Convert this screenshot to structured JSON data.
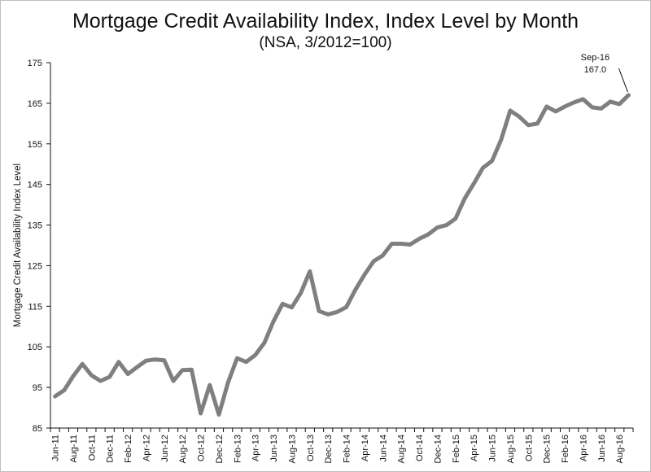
{
  "chart_data": {
    "type": "line",
    "title": "Mortgage Credit Availability Index, Index Level by Month",
    "subtitle": "(NSA, 3/2012=100)",
    "ylabel": "Mortgage Credit Availability Index Level",
    "xlabel": "",
    "ylim": [
      85,
      175
    ],
    "yticks": [
      85,
      95,
      105,
      115,
      125,
      135,
      145,
      155,
      165,
      175
    ],
    "grid": false,
    "line_color": "#7f7f7f",
    "x": [
      "Jun-11",
      "Jul-11",
      "Aug-11",
      "Sep-11",
      "Oct-11",
      "Nov-11",
      "Dec-11",
      "Jan-12",
      "Feb-12",
      "Mar-12",
      "Apr-12",
      "May-12",
      "Jun-12",
      "Jul-12",
      "Aug-12",
      "Sep-12",
      "Oct-12",
      "Nov-12",
      "Dec-12",
      "Jan-13",
      "Feb-13",
      "Mar-13",
      "Apr-13",
      "May-13",
      "Jun-13",
      "Jul-13",
      "Aug-13",
      "Sep-13",
      "Oct-13",
      "Nov-13",
      "Dec-13",
      "Jan-14",
      "Feb-14",
      "Mar-14",
      "Apr-14",
      "May-14",
      "Jun-14",
      "Jul-14",
      "Aug-14",
      "Sep-14",
      "Oct-14",
      "Nov-14",
      "Dec-14",
      "Jan-15",
      "Feb-15",
      "Mar-15",
      "Apr-15",
      "May-15",
      "Jun-15",
      "Jul-15",
      "Aug-15",
      "Sep-15",
      "Oct-15",
      "Nov-15",
      "Dec-15",
      "Jan-16",
      "Feb-16",
      "Mar-16",
      "Apr-16",
      "May-16",
      "Jun-16",
      "Jul-16",
      "Aug-16",
      "Sep-16"
    ],
    "xtick_labels": [
      "Jun-11",
      "Aug-11",
      "Oct-11",
      "Dec-11",
      "Feb-12",
      "Apr-12",
      "Jun-12",
      "Aug-12",
      "Oct-12",
      "Dec-12",
      "Feb-13",
      "Apr-13",
      "Jun-13",
      "Aug-13",
      "Oct-13",
      "Dec-13",
      "Feb-14",
      "Apr-14",
      "Jun-14",
      "Aug-14",
      "Oct-14",
      "Dec-14",
      "Feb-15",
      "Apr-15",
      "Jun-15",
      "Aug-15",
      "Oct-15",
      "Dec-15",
      "Feb-16",
      "Apr-16",
      "Jun-16",
      "Aug-16"
    ],
    "series": [
      {
        "values": [
          92.8,
          94.3,
          97.8,
          100.8,
          98.0,
          96.6,
          97.6,
          101.3,
          98.3,
          100.0,
          101.6,
          101.9,
          101.7,
          96.6,
          99.3,
          99.4,
          88.6,
          95.6,
          88.3,
          96.2,
          102.2,
          101.3,
          103.0,
          106.0,
          111.3,
          115.6,
          114.7,
          118.3,
          123.6,
          113.8,
          113.0,
          113.6,
          114.8,
          119.1,
          122.8,
          126.1,
          127.5,
          130.4,
          130.4,
          130.2,
          131.6,
          132.7,
          134.4,
          135.0,
          136.6,
          141.5,
          145.2,
          149.1,
          150.8,
          156.0,
          163.2,
          161.7,
          159.6,
          160.0,
          164.2,
          163.0,
          164.2,
          165.2,
          166.0,
          164.0,
          163.7,
          165.4,
          164.8,
          167.0
        ]
      }
    ],
    "annotation": {
      "label": "Sep-16",
      "value": "167.0"
    }
  }
}
